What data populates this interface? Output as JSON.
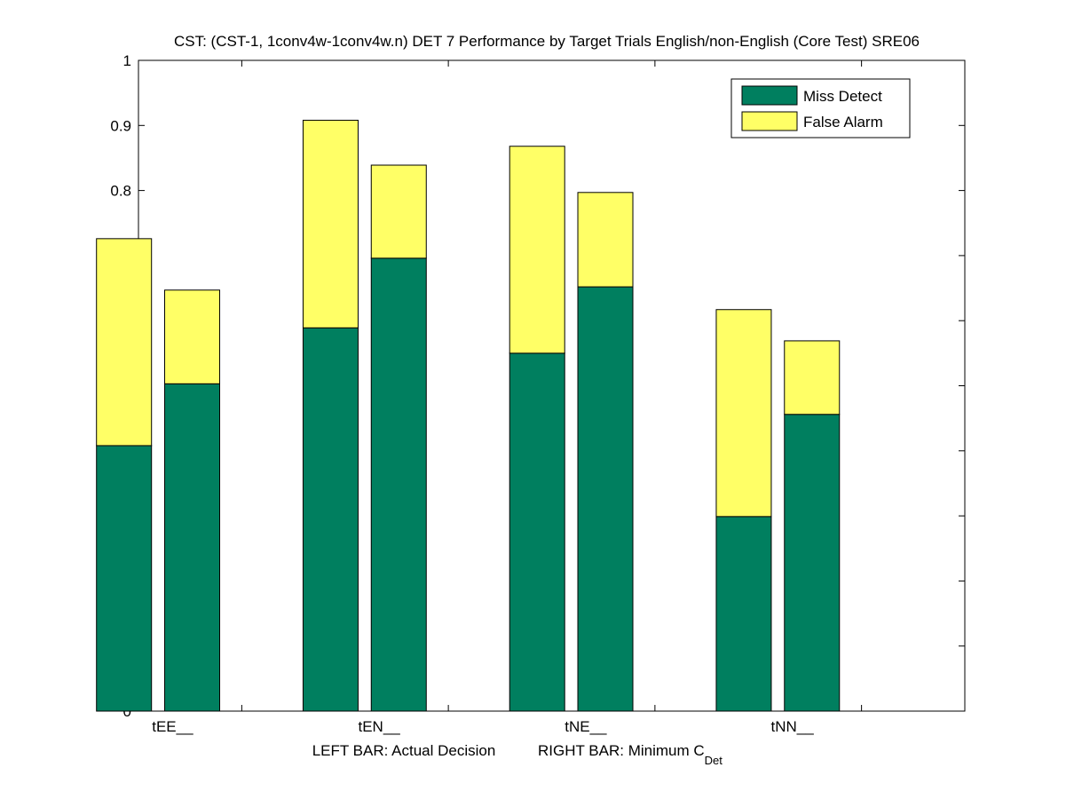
{
  "chart_data": {
    "type": "bar",
    "stacked": true,
    "title": "CST: (CST-1, 1conv4w-1conv4w.n) DET 7 Performance by Target Trials English/non-English (Core Test) SRE06",
    "categories": [
      "tEE__",
      "tEN__",
      "tNE__",
      "tNN__"
    ],
    "xlabel_left": "LEFT BAR: Actual Decision",
    "xlabel_right_main": "RIGHT BAR: Minimum C",
    "xlabel_right_sub": "Det",
    "ylim": [
      0,
      1
    ],
    "yticks": [
      "0",
      "0.1",
      "0.2",
      "0.3",
      "0.4",
      "0.5",
      "0.6",
      "0.7",
      "0.8",
      "0.9",
      "1"
    ],
    "legend_position": "top-right",
    "series": [
      {
        "name": "Miss Detect",
        "color": "#007f5f",
        "actual_decision": [
          0.408,
          0.589,
          0.55,
          0.299
        ],
        "minimum_cdet": [
          0.503,
          0.696,
          0.652,
          0.456
        ]
      },
      {
        "name": "False Alarm",
        "color": "#ffff66",
        "actual_decision": [
          0.318,
          0.319,
          0.318,
          0.318
        ],
        "minimum_cdet": [
          0.144,
          0.143,
          0.145,
          0.113
        ]
      }
    ]
  }
}
